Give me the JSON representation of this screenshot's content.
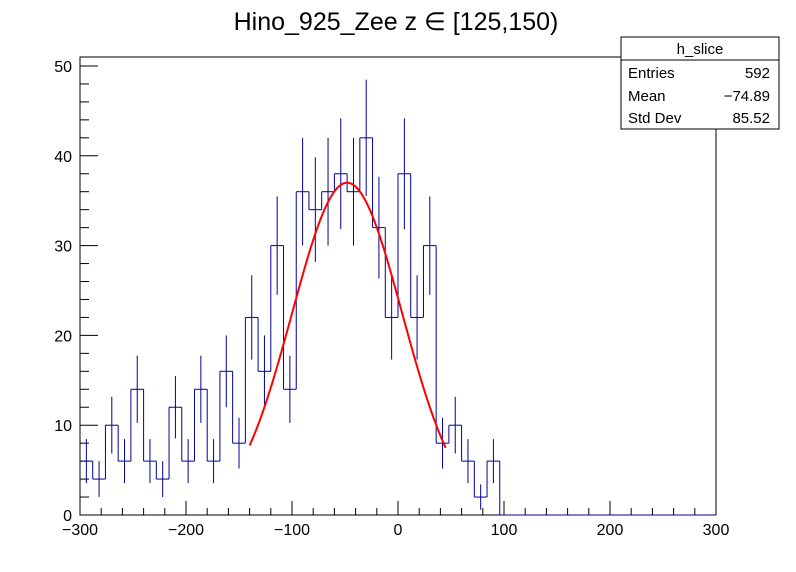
{
  "chart_data": {
    "type": "histogram",
    "title": "Hino_925_Zee z  ∈ [125,150)",
    "xlabel": "",
    "ylabel": "",
    "xlim": [
      -300,
      300
    ],
    "ylim": [
      0,
      51
    ],
    "x_ticks": [
      -300,
      -200,
      -100,
      0,
      100,
      200,
      300
    ],
    "x_tick_labels": [
      "−300",
      "−200",
      "−100",
      "0",
      "100",
      "200",
      "300"
    ],
    "y_ticks": [
      0,
      10,
      20,
      30,
      40,
      50
    ],
    "y_tick_labels": [
      "0",
      "10",
      "20",
      "30",
      "40",
      "50"
    ],
    "grid": false,
    "bin_width": 12,
    "series": [
      {
        "style": "step-with-error-bars",
        "color": "#000099",
        "bin_low_edges": [
          -300,
          -288,
          -276,
          -264,
          -252,
          -240,
          -228,
          -216,
          -204,
          -192,
          -180,
          -168,
          -156,
          -144,
          -132,
          -120,
          -108,
          -96,
          -84,
          -72,
          -60,
          -48,
          -36,
          -24,
          -12,
          0,
          12,
          24,
          36,
          48,
          60,
          72,
          84,
          96
        ],
        "values": [
          6,
          4,
          10,
          6,
          14,
          6,
          4,
          12,
          6,
          14,
          6,
          16,
          8,
          22,
          16,
          30,
          14,
          36,
          34,
          36,
          38,
          36,
          42,
          32,
          22,
          38,
          22,
          30,
          8,
          10,
          6,
          2,
          6,
          0
        ]
      },
      {
        "style": "gaussian-fit",
        "color": "#ff0000",
        "x_range": [
          -140,
          45
        ],
        "amplitude": 37,
        "mean": -48,
        "sigma": 52
      }
    ],
    "stats_box": {
      "name": "h_slice",
      "rows": [
        {
          "label": "Entries",
          "value": "592"
        },
        {
          "label": "Mean",
          "value": "−74.89"
        },
        {
          "label": "Std Dev",
          "value": "85.52"
        }
      ]
    }
  }
}
